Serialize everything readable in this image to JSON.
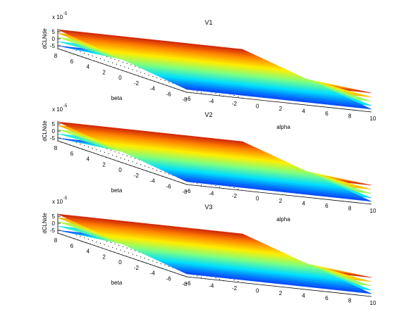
{
  "colors": {
    "background": "#ffffff",
    "surface_scale": [
      "#00008f",
      "#0050ff",
      "#00dfff",
      "#7fff7f",
      "#ffef00",
      "#ff7f00",
      "#bf0000"
    ],
    "grid": "#000000"
  },
  "chart_data": [
    {
      "type": "surface3d",
      "title": "V1",
      "xlabel": "beta",
      "ylabel": "alpha",
      "zlabel": "dCLNde",
      "zexponent": "x 10",
      "zexponent_power": "-5",
      "xticks": [
        "8",
        "6",
        "4",
        "2",
        "0",
        "-2",
        "-4",
        "-6",
        "-8"
      ],
      "yticks": [
        "-6",
        "-4",
        "-2",
        "0",
        "2",
        "4",
        "6",
        "8",
        "10"
      ],
      "zticks": [
        "5",
        "0",
        "-5"
      ],
      "xlim": [
        -8,
        8
      ],
      "ylim": [
        -6,
        10
      ],
      "zlim": [
        -7,
        7
      ],
      "grid": true,
      "x": [
        -8,
        -6,
        -4,
        -2,
        0,
        2,
        4,
        6,
        8
      ],
      "y": [
        -6,
        -4,
        -2,
        0,
        2,
        4,
        6,
        8,
        10
      ],
      "surfaces": [
        {
          "z_at_beta_min": 6.5,
          "z_at_beta_max": -5.0
        },
        {
          "z_at_beta_min": 3.5,
          "z_at_beta_max": -2.0
        },
        {
          "z_at_beta_min": 0.5,
          "z_at_beta_max": 1.0
        },
        {
          "z_at_beta_min": -2.5,
          "z_at_beta_max": 4.0
        },
        {
          "z_at_beta_min": -5.0,
          "z_at_beta_max": 6.5
        }
      ]
    },
    {
      "type": "surface3d",
      "title": "V2",
      "xlabel": "beta",
      "ylabel": "alpha",
      "zlabel": "dCLNde",
      "zexponent": "x 10",
      "zexponent_power": "-5",
      "xticks": [
        "8",
        "6",
        "4",
        "2",
        "0",
        "-2",
        "-4",
        "-6",
        "-8"
      ],
      "yticks": [
        "-6",
        "-4",
        "-2",
        "0",
        "2",
        "4",
        "6",
        "8",
        "10"
      ],
      "zticks": [
        "5",
        "0",
        "-5"
      ],
      "xlim": [
        -8,
        8
      ],
      "ylim": [
        -6,
        10
      ],
      "zlim": [
        -7,
        7
      ],
      "grid": true,
      "x": [
        -8,
        -6,
        -4,
        -2,
        0,
        2,
        4,
        6,
        8
      ],
      "y": [
        -6,
        -4,
        -2,
        0,
        2,
        4,
        6,
        8,
        10
      ],
      "surfaces": [
        {
          "z_at_beta_min": 6.5,
          "z_at_beta_max": -5.0
        },
        {
          "z_at_beta_min": 3.5,
          "z_at_beta_max": -2.0
        },
        {
          "z_at_beta_min": 0.5,
          "z_at_beta_max": 1.0
        },
        {
          "z_at_beta_min": -2.5,
          "z_at_beta_max": 4.0
        },
        {
          "z_at_beta_min": -5.0,
          "z_at_beta_max": 6.5
        }
      ]
    },
    {
      "type": "surface3d",
      "title": "V3",
      "xlabel": "beta",
      "ylabel": "alpha",
      "zlabel": "dCLNde",
      "zexponent": "x 10",
      "zexponent_power": "-5",
      "xticks": [
        "8",
        "6",
        "4",
        "2",
        "0",
        "-2",
        "-4",
        "-6",
        "-8"
      ],
      "yticks": [
        "-6",
        "-4",
        "-2",
        "0",
        "2",
        "4",
        "6",
        "8",
        "10"
      ],
      "zticks": [
        "5",
        "0",
        "-5"
      ],
      "xlim": [
        -8,
        8
      ],
      "ylim": [
        -6,
        10
      ],
      "zlim": [
        -7,
        7
      ],
      "grid": true,
      "x": [
        -8,
        -6,
        -4,
        -2,
        0,
        2,
        4,
        6,
        8
      ],
      "y": [
        -6,
        -4,
        -2,
        0,
        2,
        4,
        6,
        8,
        10
      ],
      "surfaces": [
        {
          "z_at_beta_min": 6.5,
          "z_at_beta_max": -5.0
        },
        {
          "z_at_beta_min": 3.5,
          "z_at_beta_max": -2.0
        },
        {
          "z_at_beta_min": 0.5,
          "z_at_beta_max": 1.0
        },
        {
          "z_at_beta_min": -2.5,
          "z_at_beta_max": 4.0
        },
        {
          "z_at_beta_min": -5.0,
          "z_at_beta_max": 6.5
        }
      ]
    }
  ]
}
